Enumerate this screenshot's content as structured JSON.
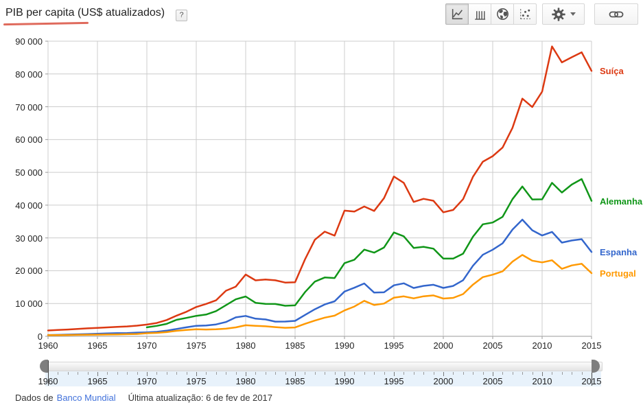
{
  "header": {
    "title": "PIB per capita (US$ atualizados)",
    "help_label": "?",
    "underline_color": "#df6a5c"
  },
  "toolbar": {
    "chart_type_buttons": [
      {
        "name": "line",
        "icon": "line-chart-icon",
        "selected": true
      },
      {
        "name": "bar",
        "icon": "bar-chart-icon",
        "selected": false
      },
      {
        "name": "map",
        "icon": "globe-icon",
        "selected": false
      },
      {
        "name": "scatter",
        "icon": "scatter-chart-icon",
        "selected": false
      }
    ],
    "settings_icon": "gear-icon",
    "share_icon": "link-icon"
  },
  "chart_data": {
    "type": "line",
    "title": "PIB per capita (US$ atualizados)",
    "xlabel": "",
    "ylabel": "",
    "grid": true,
    "legend_position": "right",
    "xlim": [
      1960,
      2015
    ],
    "ylim": [
      0,
      90000
    ],
    "x_ticks": [
      1960,
      1965,
      1970,
      1975,
      1980,
      1985,
      1990,
      1995,
      2000,
      2005,
      2010,
      2015
    ],
    "y_ticks": [
      0,
      10000,
      20000,
      30000,
      40000,
      50000,
      60000,
      70000,
      80000,
      90000
    ],
    "y_tick_labels": [
      "0",
      "10 000",
      "20 000",
      "30 000",
      "40 000",
      "50 000",
      "60 000",
      "70 000",
      "80 000",
      "90 000"
    ],
    "x": [
      1960,
      1961,
      1962,
      1963,
      1964,
      1965,
      1966,
      1967,
      1968,
      1969,
      1970,
      1971,
      1972,
      1973,
      1974,
      1975,
      1976,
      1977,
      1978,
      1979,
      1980,
      1981,
      1982,
      1983,
      1984,
      1985,
      1986,
      1987,
      1988,
      1989,
      1990,
      1991,
      1992,
      1993,
      1994,
      1995,
      1996,
      1997,
      1998,
      1999,
      2000,
      2001,
      2002,
      2003,
      2004,
      2005,
      2006,
      2007,
      2008,
      2009,
      2010,
      2011,
      2012,
      2013,
      2014,
      2015
    ],
    "series": [
      {
        "name": "Suíça",
        "color": "#dc3912",
        "values": [
          1787,
          1920,
          2080,
          2230,
          2420,
          2575,
          2720,
          2890,
          3020,
          3240,
          3578,
          4060,
          4970,
          6310,
          7470,
          8942,
          9870,
          10960,
          13900,
          15150,
          18832,
          17050,
          17320,
          17080,
          16380,
          16464,
          23440,
          29440,
          31920,
          30700,
          38333,
          38060,
          39570,
          38250,
          42130,
          48717,
          46800,
          40980,
          41920,
          41330,
          37813,
          38529,
          41816,
          48635,
          53255,
          54952,
          57580,
          63555,
          72488,
          69927,
          74606,
          88416,
          83538,
          85112,
          86606,
          80945
        ]
      },
      {
        "name": "Alemanha",
        "color": "#109618",
        "values": [
          null,
          null,
          null,
          null,
          null,
          null,
          null,
          null,
          null,
          null,
          2747,
          3181,
          3786,
          5027,
          5609,
          6236,
          6634,
          7683,
          9482,
          11283,
          12138,
          10211,
          9906,
          9864,
          9313,
          9430,
          13462,
          16678,
          17931,
          17764,
          22304,
          23358,
          26438,
          25523,
          27077,
          31658,
          30486,
          26965,
          27289,
          26726,
          23719,
          23687,
          25205,
          30360,
          34166,
          34697,
          36448,
          41815,
          45699,
          41733,
          41786,
          46810,
          43858,
          46286,
          47960,
          41324
        ]
      },
      {
        "name": "Espanha",
        "color": "#3366cc",
        "values": [
          396,
          450,
          520,
          609,
          675,
          774,
          888,
          968,
          1014,
          1126,
          1205,
          1355,
          1708,
          2247,
          2749,
          3210,
          3282,
          3628,
          4356,
          5770,
          6209,
          5371,
          5159,
          4478,
          4490,
          4699,
          6513,
          8239,
          9703,
          10682,
          13650,
          14811,
          16112,
          13339,
          13415,
          15557,
          16168,
          14731,
          15394,
          15715,
          14750,
          15370,
          17101,
          21510,
          24861,
          26419,
          28365,
          32550,
          35579,
          32334,
          30737,
          31835,
          28563,
          29212,
          29623,
          25732
        ]
      },
      {
        "name": "Portugal",
        "color": "#ff9900",
        "values": [
          361,
          382,
          400,
          430,
          470,
          510,
          550,
          590,
          650,
          710,
          935,
          1050,
          1270,
          1670,
          1930,
          2129,
          2080,
          2160,
          2330,
          2720,
          3368,
          3210,
          3050,
          2800,
          2600,
          2705,
          3800,
          4800,
          5700,
          6300,
          7885,
          9090,
          10830,
          9540,
          9980,
          11781,
          12180,
          11580,
          12200,
          12480,
          11502,
          11720,
          12880,
          15770,
          18050,
          18785,
          19820,
          22780,
          24815,
          23060,
          22540,
          23200,
          20577,
          21619,
          22124,
          19253
        ]
      }
    ]
  },
  "timeline": {
    "start_year": "1960",
    "end_year": "2015"
  },
  "footer": {
    "source_prefix": "Dados de",
    "source_link": "Banco Mundial",
    "updated": "Última atualização: 6 de fev de 2017"
  }
}
